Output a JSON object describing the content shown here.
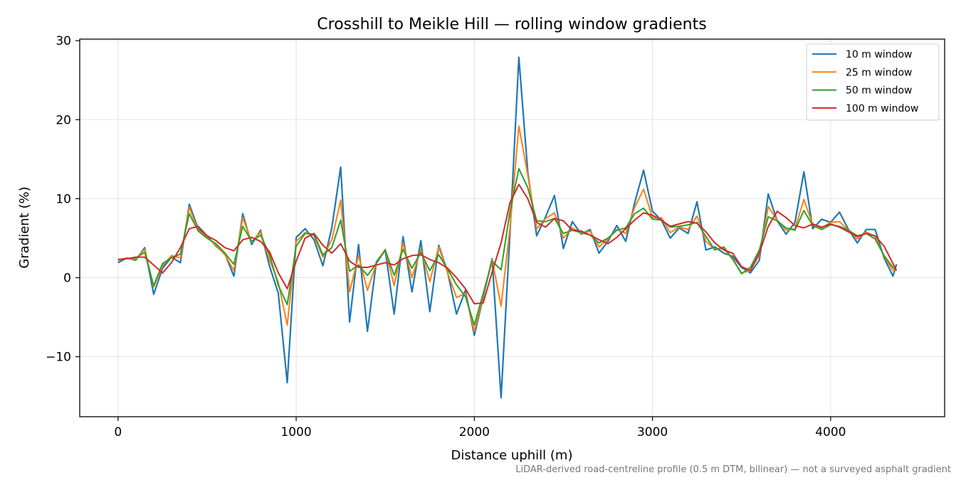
{
  "chart_data": {
    "type": "line",
    "title": "Crosshill to Meikle Hill — rolling window gradients",
    "xlabel": "Distance uphill (m)",
    "ylabel": "Gradient (%)",
    "footnote": "LiDAR-derived road-centreline profile (0.5 m DTM, bilinear) — not a surveyed asphalt gradient",
    "xlim": [
      -215,
      4640
    ],
    "ylim": [
      -17.6,
      30.2
    ],
    "xticks": [
      0,
      1000,
      2000,
      3000,
      4000
    ],
    "xtick_labels": [
      "0",
      "1000",
      "2000",
      "3000",
      "4000"
    ],
    "yticks": [
      -10,
      0,
      10,
      20,
      30
    ],
    "ytick_labels": [
      "−10",
      "0",
      "10",
      "20",
      "30"
    ],
    "grid": true,
    "legend_position": "top-right",
    "x": [
      0,
      50,
      100,
      150,
      200,
      250,
      300,
      350,
      400,
      450,
      500,
      550,
      600,
      650,
      700,
      750,
      800,
      850,
      900,
      950,
      1000,
      1050,
      1100,
      1150,
      1200,
      1250,
      1300,
      1350,
      1400,
      1450,
      1500,
      1550,
      1600,
      1650,
      1700,
      1750,
      1800,
      1850,
      1900,
      1950,
      2000,
      2050,
      2100,
      2150,
      2200,
      2250,
      2300,
      2350,
      2400,
      2450,
      2500,
      2550,
      2600,
      2650,
      2700,
      2750,
      2800,
      2850,
      2900,
      2950,
      3000,
      3050,
      3100,
      3150,
      3200,
      3250,
      3300,
      3350,
      3400,
      3450,
      3500,
      3550,
      3600,
      3650,
      3700,
      3750,
      3800,
      3850,
      3900,
      3950,
      4000,
      4050,
      4100,
      4150,
      4200,
      4250,
      4300,
      4350,
      4370
    ],
    "series": [
      {
        "name": "10 m window",
        "color": "#1f77b4",
        "width": 2.2,
        "values": [
          1.9,
          2.5,
          2.2,
          3.8,
          -2.1,
          1.2,
          2.6,
          1.9,
          9.3,
          6.2,
          5.3,
          4.0,
          3.0,
          0.2,
          8.1,
          4.2,
          6.0,
          1.5,
          -2.0,
          -13.3,
          5.1,
          6.2,
          4.8,
          1.5,
          6.3,
          14.0,
          -5.6,
          4.2,
          -6.8,
          2.0,
          3.5,
          -4.6,
          5.2,
          -1.8,
          4.7,
          -4.3,
          4.1,
          0.7,
          -4.6,
          -1.6,
          -7.3,
          -2.5,
          2.4,
          -15.2,
          5.6,
          27.9,
          13.4,
          5.3,
          7.7,
          10.4,
          3.7,
          7.1,
          5.5,
          6.1,
          3.1,
          4.6,
          6.6,
          4.6,
          9.5,
          13.6,
          8.4,
          7.3,
          5.0,
          6.3,
          5.6,
          9.6,
          3.5,
          3.9,
          3.1,
          2.7,
          1.3,
          0.6,
          2.2,
          10.6,
          7.2,
          5.5,
          7.0,
          13.4,
          6.2,
          7.4,
          7.0,
          8.3,
          6.1,
          4.4,
          6.1,
          6.1,
          2.5,
          0.2,
          1.7
        ]
      },
      {
        "name": "25 m window",
        "color": "#ff7f0e",
        "width": 2.0,
        "values": [
          2.2,
          2.5,
          2.3,
          3.6,
          -1.2,
          1.5,
          2.8,
          2.5,
          8.9,
          6.0,
          5.1,
          4.1,
          2.9,
          0.9,
          7.6,
          4.5,
          5.8,
          2.3,
          -0.6,
          -6.0,
          4.6,
          5.7,
          5.3,
          2.6,
          4.8,
          9.8,
          -1.8,
          2.8,
          -1.6,
          1.8,
          3.6,
          -1.0,
          4.4,
          0.0,
          3.6,
          -0.5,
          3.9,
          0.6,
          -2.5,
          -2.0,
          -6.8,
          -2.3,
          2.3,
          -3.6,
          6.3,
          19.2,
          13.0,
          6.2,
          7.5,
          8.2,
          5.0,
          6.3,
          5.6,
          5.9,
          3.9,
          4.9,
          6.1,
          5.6,
          8.9,
          11.2,
          7.6,
          7.6,
          5.7,
          6.4,
          6.1,
          7.8,
          4.6,
          3.6,
          3.7,
          2.3,
          0.6,
          0.9,
          2.9,
          9.0,
          7.3,
          6.0,
          6.2,
          9.9,
          6.7,
          6.3,
          7.0,
          7.1,
          6.0,
          4.9,
          5.8,
          5.2,
          2.7,
          0.9,
          1.0
        ]
      },
      {
        "name": "50 m window",
        "color": "#2ca02c",
        "width": 2.0,
        "values": [
          2.3,
          2.4,
          2.5,
          3.2,
          -1.0,
          1.8,
          2.5,
          3.0,
          8.1,
          5.9,
          5.0,
          4.3,
          3.1,
          1.7,
          6.5,
          4.6,
          5.4,
          3.0,
          -1.0,
          -3.4,
          4.0,
          5.6,
          5.5,
          2.9,
          3.8,
          7.3,
          0.8,
          1.6,
          0.3,
          1.8,
          3.5,
          0.3,
          3.6,
          1.2,
          3.2,
          0.9,
          2.9,
          1.1,
          -0.9,
          -2.4,
          -6.0,
          -2.0,
          2.1,
          1.0,
          8.4,
          13.8,
          11.4,
          7.2,
          7.1,
          7.5,
          5.6,
          6.0,
          5.7,
          5.4,
          4.4,
          5.0,
          6.0,
          6.3,
          8.1,
          8.8,
          7.4,
          7.3,
          6.4,
          6.5,
          6.7,
          7.0,
          5.2,
          3.5,
          3.9,
          2.4,
          0.5,
          1.3,
          3.5,
          7.7,
          7.2,
          6.3,
          6.0,
          8.5,
          6.6,
          6.1,
          6.7,
          6.5,
          6.0,
          5.3,
          5.6,
          4.9,
          2.8,
          1.3,
          0.9
        ]
      },
      {
        "name": "100 m window",
        "color": "#d62728",
        "width": 2.0,
        "values": [
          2.3,
          2.4,
          2.6,
          2.6,
          1.6,
          0.6,
          1.9,
          3.8,
          6.2,
          6.5,
          5.3,
          4.7,
          3.8,
          3.4,
          4.8,
          5.1,
          4.6,
          3.3,
          0.6,
          -1.4,
          2.1,
          5.0,
          5.6,
          4.1,
          3.1,
          4.3,
          2.1,
          1.3,
          1.3,
          1.6,
          1.9,
          1.6,
          2.4,
          2.8,
          2.9,
          2.3,
          1.9,
          1.2,
          0.0,
          -1.4,
          -3.3,
          -3.2,
          0.7,
          4.4,
          9.5,
          11.8,
          10.0,
          7.0,
          6.4,
          7.5,
          7.2,
          6.0,
          5.9,
          5.4,
          4.8,
          4.3,
          5.1,
          6.2,
          7.3,
          8.2,
          7.9,
          7.3,
          6.5,
          6.8,
          7.1,
          6.9,
          5.8,
          4.4,
          3.5,
          3.1,
          1.4,
          0.9,
          3.1,
          6.5,
          8.4,
          7.6,
          6.6,
          6.3,
          6.8,
          6.4,
          6.8,
          6.4,
          5.8,
          5.2,
          5.6,
          5.3,
          4.0,
          1.8,
          0.9
        ]
      }
    ]
  }
}
